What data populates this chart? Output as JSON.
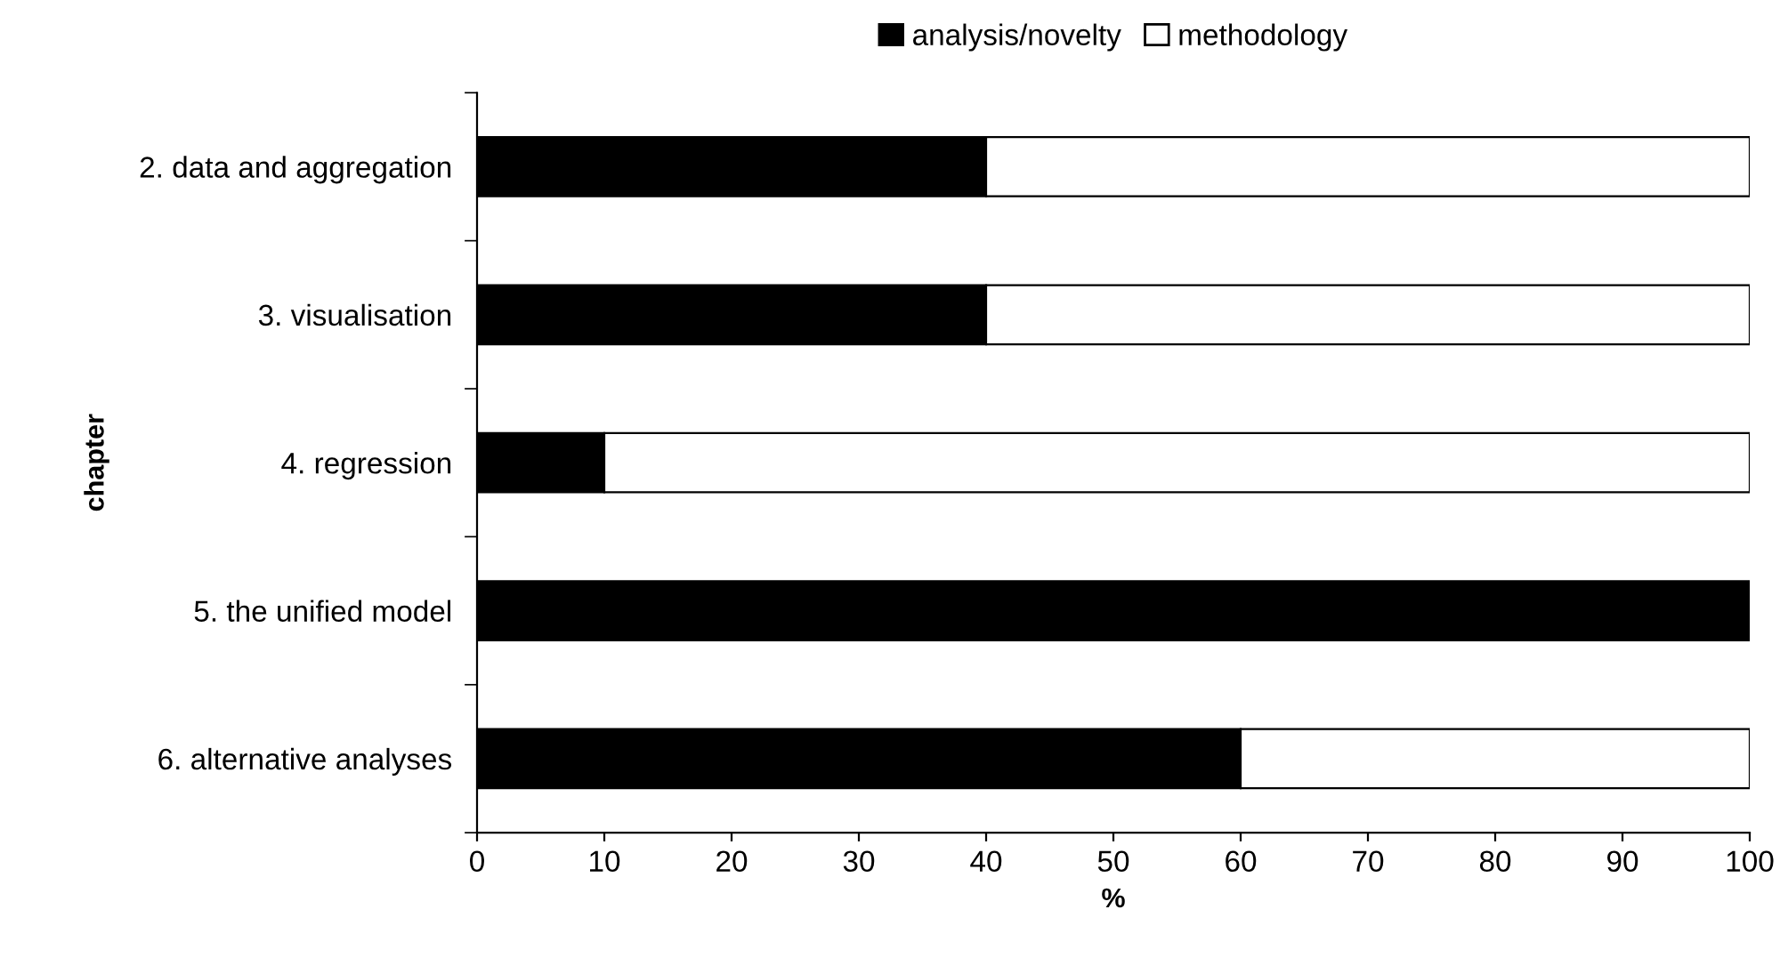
{
  "chart_data": {
    "type": "bar",
    "orientation": "horizontal",
    "stacked": true,
    "xlabel": "%",
    "ylabel": "chapter",
    "categories": [
      "2. data and aggregation",
      "3. visualisation",
      "4. regression",
      "5. the unified model",
      "6. alternative analyses"
    ],
    "series": [
      {
        "name": "analysis/novelty",
        "color": "#000000",
        "values": [
          40,
          40,
          10,
          100,
          60
        ]
      },
      {
        "name": "methodology",
        "color": "#ffffff",
        "values": [
          60,
          60,
          90,
          null,
          40
        ]
      }
    ],
    "xlim": [
      0,
      100
    ],
    "xticks": [
      0,
      10,
      20,
      30,
      40,
      50,
      60,
      70,
      80,
      90,
      100
    ],
    "grid": false,
    "legend": "top"
  }
}
